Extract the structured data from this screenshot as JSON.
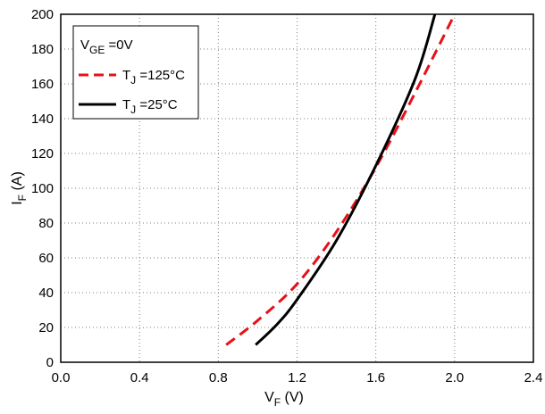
{
  "chart_data": {
    "type": "line",
    "xlabel": {
      "main": "V",
      "sub": "F",
      "unit": " (V)"
    },
    "ylabel": {
      "main": "I",
      "sub": "F",
      "unit": " (A)"
    },
    "xlim": [
      0,
      2.4
    ],
    "ylim": [
      0,
      200
    ],
    "xticks": [
      0,
      0.4,
      0.8,
      1.2,
      1.6,
      2.0,
      2.4
    ],
    "xtick_labels": [
      "0.0",
      "0.4",
      "0.8",
      "1.2",
      "1.6",
      "2.0",
      "2.4"
    ],
    "yticks": [
      0,
      20,
      40,
      60,
      80,
      100,
      120,
      140,
      160,
      180,
      200
    ],
    "ytick_labels": [
      "0",
      "20",
      "40",
      "60",
      "80",
      "100",
      "120",
      "140",
      "160",
      "180",
      "200"
    ],
    "grid": true,
    "legend": {
      "position": "top-left",
      "header": {
        "main": "V",
        "sub": "GE",
        "rest": " =0V"
      }
    },
    "series": [
      {
        "name": {
          "main": "T",
          "sub": "J",
          "rest": " =125°C"
        },
        "color": "#e8101a",
        "style": "dashed",
        "points": [
          [
            0.84,
            10
          ],
          [
            1.0,
            24
          ],
          [
            1.2,
            45
          ],
          [
            1.4,
            75
          ],
          [
            1.6,
            112
          ],
          [
            1.8,
            155
          ],
          [
            2.0,
            200
          ]
        ]
      },
      {
        "name": {
          "main": "T",
          "sub": "J",
          "rest": " =25°C"
        },
        "color": "#000000",
        "style": "solid",
        "points": [
          [
            0.99,
            10
          ],
          [
            1.1,
            22
          ],
          [
            1.2,
            36
          ],
          [
            1.4,
            70
          ],
          [
            1.6,
            113
          ],
          [
            1.8,
            163
          ],
          [
            1.9,
            200
          ]
        ]
      }
    ]
  }
}
